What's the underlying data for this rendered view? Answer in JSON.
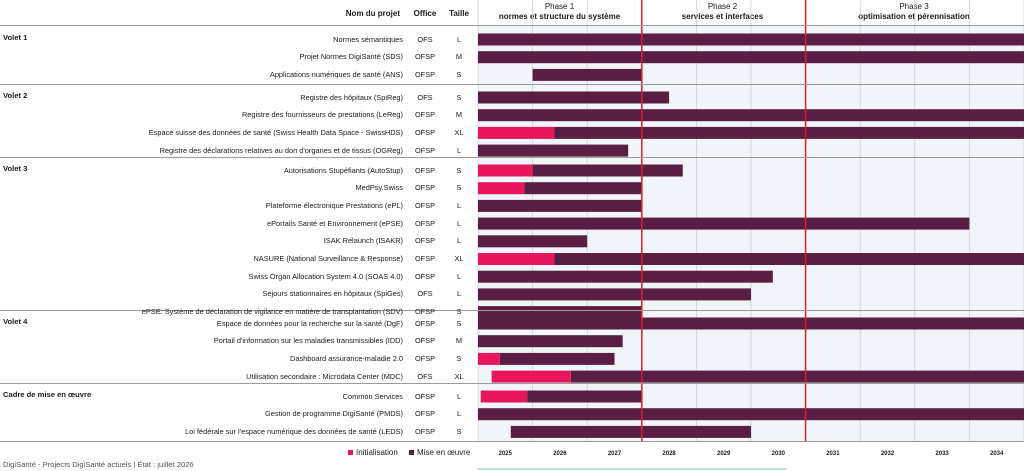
{
  "header": {
    "col_name": "Nom du projet",
    "col_office": "Office",
    "col_size": "Taille"
  },
  "phases": [
    {
      "label": "Phase 1",
      "sub": "normes et structure du système"
    },
    {
      "label": "Phase 2",
      "sub": "services et interfaces"
    },
    {
      "label": "Phase 3",
      "sub": "optimisation et pérennisation"
    }
  ],
  "groups": [
    {
      "title": "Volet 1",
      "rows": [
        {
          "name": "Normes sémantiques",
          "office": "OFS",
          "size": "L"
        },
        {
          "name": "Projet Normes DigiSanté (SDS)",
          "office": "OFSP",
          "size": "M"
        },
        {
          "name": "Applications numériques de santé (ANS)",
          "office": "OFSP",
          "size": "S"
        }
      ]
    },
    {
      "title": "Volet 2",
      "rows": [
        {
          "name": "Registre des hôpitaux (SpiReg)",
          "office": "OFS",
          "size": "S"
        },
        {
          "name": "Registre des fournisseurs de prestations (LeReg)",
          "office": "OFSP",
          "size": "M"
        },
        {
          "name": "Espace suisse des données de santé (Swiss Health Data Space - SwissHDS)",
          "office": "OFSP",
          "size": "XL"
        },
        {
          "name": "Registre des déclarations relatives au don d'organes et de tissus (OGReg)",
          "office": "OFSP",
          "size": "L"
        }
      ]
    },
    {
      "title": "Volet 3",
      "rows": [
        {
          "name": "Autorisations Stupéfiants (AutoStup)",
          "office": "OFSP",
          "size": "S"
        },
        {
          "name": "MedPsy.Swiss",
          "office": "OFSP",
          "size": "S"
        },
        {
          "name": "Plateforme électronique Prestations (ePL)",
          "office": "OFSP",
          "size": "L"
        },
        {
          "name": "ePortails Santé et Environnement (ePSE)",
          "office": "OFSP",
          "size": "L"
        },
        {
          "name": "ISAK Relaunch (ISAKR)",
          "office": "OFSP",
          "size": "L"
        },
        {
          "name": "NASURE (National Surveillance & Response)",
          "office": "OFSP",
          "size": "XL"
        },
        {
          "name": "Swiss Organ Allocation System 4.0 (SOAS 4.0)",
          "office": "OFSP",
          "size": "L"
        },
        {
          "name": "Séjours stationnaires en hôpitaux (SpiGes)",
          "office": "OFS",
          "size": "L"
        },
        {
          "name": "ePSE: Système de déclaration de vigilance en matière de transplantation (SDV)",
          "office": "OFSP",
          "size": "S"
        }
      ]
    },
    {
      "title": "Volet 4",
      "rows": [
        {
          "name": "Espace de données pour la recherche sur la santé (DgF)",
          "office": "OFSP",
          "size": "S"
        },
        {
          "name": "Portail d'information sur les maladies transmissibles (IDD)",
          "office": "OFSP",
          "size": "M"
        },
        {
          "name": "Dashboard assurance-maladie 2.0",
          "office": "OFSP",
          "size": "S"
        },
        {
          "name": "Utilisation secondaire : Microdata Center (MDC)",
          "office": "OFS",
          "size": "XL"
        }
      ]
    },
    {
      "title": "Cadre de mise en œuvre",
      "rows": [
        {
          "name": "Common Services",
          "office": "OFSP",
          "size": "L"
        },
        {
          "name": "Gestion de programme DigiSanté (PMDS)",
          "office": "OFSP",
          "size": "L"
        },
        {
          "name": "Loi fédérale sur l'espace numérique des données de santé (LEDS)",
          "office": "OFSP",
          "size": "S"
        }
      ]
    }
  ],
  "chart_data": {
    "type": "gantt",
    "x_axis": {
      "start": 2025,
      "end": 2035,
      "tick_labels": [
        "2025",
        "2026",
        "2027",
        "2028",
        "2029",
        "2030",
        "2031",
        "2032",
        "2033",
        "2034"
      ]
    },
    "phase_boundaries": [
      2028,
      2031
    ],
    "series": [
      {
        "name": "Initialisation",
        "color": "#e8175d"
      },
      {
        "name": "Mise en œuvre",
        "color": "#5a1e44"
      }
    ],
    "tasks": [
      {
        "name": "Normes sémantiques",
        "init": null,
        "impl": [
          2025.0,
          2035.0
        ]
      },
      {
        "name": "Projet Normes DigiSanté (SDS)",
        "init": null,
        "impl": [
          2025.0,
          2035.0
        ]
      },
      {
        "name": "Applications numériques de santé (ANS)",
        "init": null,
        "impl": [
          2026.0,
          2028.0
        ]
      },
      {
        "name": "Registre des hôpitaux (SpiReg)",
        "init": null,
        "impl": [
          2025.0,
          2028.5
        ]
      },
      {
        "name": "Registre des fournisseurs de prestations (LeReg)",
        "init": null,
        "impl": [
          2025.0,
          2035.0
        ]
      },
      {
        "name": "Espace suisse des données de santé (Swiss Health Data Space - SwissHDS)",
        "init": [
          2025.0,
          2026.4
        ],
        "impl": [
          2026.4,
          2035.0
        ]
      },
      {
        "name": "Registre des déclarations relatives au don d'organes et de tissus (OGReg)",
        "init": null,
        "impl": [
          2025.0,
          2027.75
        ]
      },
      {
        "name": "Autorisations Stupéfiants (AutoStup)",
        "init": [
          2025.0,
          2026.0
        ],
        "impl": [
          2026.0,
          2028.75
        ]
      },
      {
        "name": "MedPsy.Swiss",
        "init": [
          2025.0,
          2025.85
        ],
        "impl": [
          2025.85,
          2028.0
        ]
      },
      {
        "name": "Plateforme électronique Prestations (ePL)",
        "init": null,
        "impl": [
          2025.0,
          2028.0
        ]
      },
      {
        "name": "ePortails Santé et Environnement (ePSE)",
        "init": null,
        "impl": [
          2025.0,
          2034.0
        ]
      },
      {
        "name": "ISAK Relaunch (ISAKR)",
        "init": null,
        "impl": [
          2025.0,
          2027.0
        ]
      },
      {
        "name": "NASURE (National Surveillance & Response)",
        "init": [
          2025.0,
          2026.4
        ],
        "impl": [
          2026.4,
          2035.0
        ]
      },
      {
        "name": "Swiss Organ Allocation System 4.0 (SOAS 4.0)",
        "init": null,
        "impl": [
          2025.0,
          2030.4
        ]
      },
      {
        "name": "Séjours stationnaires en hôpitaux (SpiGes)",
        "init": null,
        "impl": [
          2025.0,
          2030.0
        ]
      },
      {
        "name": "ePSE: Système de déclaration de vigilance en matière de transplantation (SDV)",
        "init": null,
        "impl": [
          2025.0,
          2028.0
        ]
      },
      {
        "name": "Espace de données pour la recherche sur la santé (DgF)",
        "init": null,
        "impl": [
          2025.0,
          2035.0
        ]
      },
      {
        "name": "Portail d'information sur les maladies transmissibles (IDD)",
        "init": null,
        "impl": [
          2025.0,
          2027.65
        ]
      },
      {
        "name": "Dashboard assurance-maladie 2.0",
        "init": [
          2025.0,
          2025.4
        ],
        "impl": [
          2025.4,
          2027.5
        ]
      },
      {
        "name": "Utilisation secondaire : Microdata Center (MDC)",
        "init": [
          2025.25,
          2026.7
        ],
        "impl": [
          2026.7,
          2035.0
        ]
      },
      {
        "name": "Common Services",
        "init": [
          2025.05,
          2025.9
        ],
        "impl": [
          2025.9,
          2028.0
        ]
      },
      {
        "name": "Gestion de programme DigiSanté (PMDS)",
        "init": null,
        "impl": [
          2025.0,
          2035.0
        ]
      },
      {
        "name": "Loi fédérale sur l'espace numérique des données de santé (LEDS)",
        "init": null,
        "impl": [
          2025.6,
          2030.0
        ]
      }
    ]
  },
  "legend": {
    "init_label": "Initialisation",
    "impl_label": "Mise en œuvre"
  },
  "footer": "DigiSanté - Projects DigiSanté actuels | État : juillet 2026"
}
